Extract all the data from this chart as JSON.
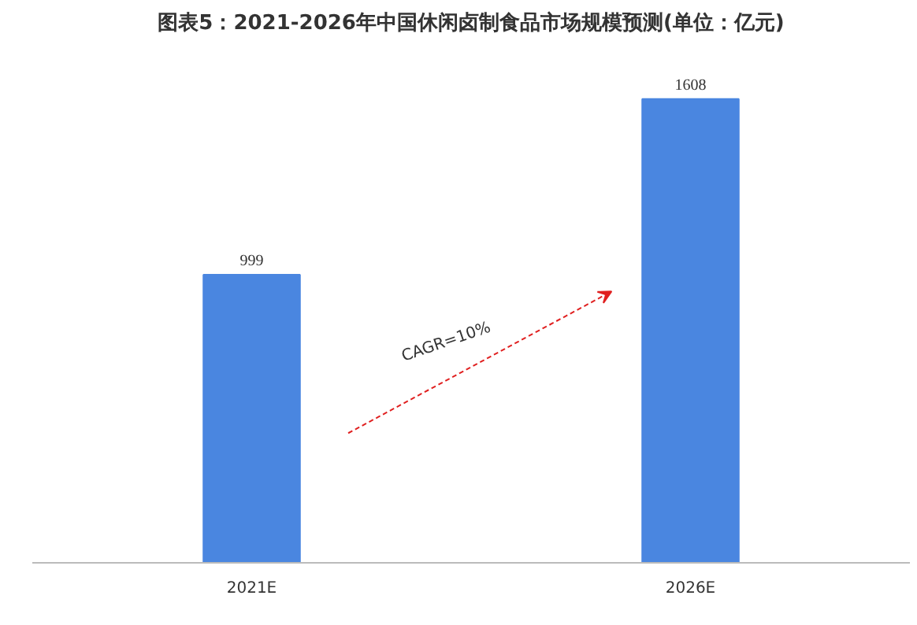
{
  "chart_data": {
    "type": "bar",
    "title": "图表5：2021-2026年中国休闲卤制食品市场规模预测(单位：亿元)",
    "categories": [
      "2021E",
      "2026E"
    ],
    "values": [
      999,
      1608
    ],
    "color": "#4a86e0",
    "data_labels": true,
    "annotations": [
      "CAGR=10%"
    ]
  }
}
